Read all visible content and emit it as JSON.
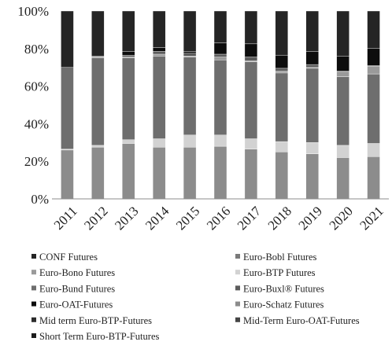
{
  "chart_data": {
    "type": "bar",
    "stacked": true,
    "categories": [
      "2011",
      "2012",
      "2013",
      "2014",
      "2015",
      "2016",
      "2017",
      "2018",
      "2019",
      "2020",
      "2021"
    ],
    "yticks": [
      "0%",
      "20%",
      "40%",
      "60%",
      "80%",
      "100%"
    ],
    "ylim": [
      0,
      100
    ],
    "grid": false,
    "legend_position": "bottom",
    "series": [
      {
        "name": "Euro-Schatz Futures",
        "color": "#8c8c8c",
        "values": [
          26.0,
          27.5,
          29.5,
          27.5,
          27.5,
          28.0,
          26.5,
          25.0,
          24.0,
          22.0,
          22.5
        ]
      },
      {
        "name": "Euro-BTP Futures",
        "color": "#d2d2d2",
        "values": [
          0.5,
          1.0,
          2.0,
          4.5,
          6.5,
          6.0,
          5.5,
          5.5,
          6.0,
          6.5,
          7.0
        ]
      },
      {
        "name": "Euro-Bund Futures",
        "color": "#6e6e6e",
        "values": [
          43.5,
          46.5,
          43.5,
          44.0,
          41.5,
          40.0,
          41.0,
          36.5,
          39.5,
          36.5,
          37.0
        ]
      },
      {
        "name": "Euro-Bono Futures",
        "color": "#9a9a9a",
        "values": [
          0.0,
          0.5,
          0.5,
          1.0,
          0.5,
          1.5,
          0.5,
          1.0,
          0.5,
          2.5,
          4.0
        ]
      },
      {
        "name": "Euro-Buxl® Futures",
        "color": "#5c5c5c",
        "values": [
          0.0,
          0.5,
          1.0,
          1.5,
          1.5,
          1.5,
          2.0,
          1.5,
          1.5,
          0.5,
          0.5
        ]
      },
      {
        "name": "Euro-OAT-Futures",
        "color": "#0d0d0d",
        "values": [
          0.0,
          0.0,
          2.0,
          2.0,
          1.0,
          6.0,
          7.0,
          7.0,
          7.0,
          8.0,
          9.0
        ]
      },
      {
        "name": "Mid term Euro-BTP-Futures",
        "color": "#2c2c2c",
        "values": [
          0.0,
          0.0,
          0.0,
          0.0,
          0.0,
          0.0,
          0.0,
          0.0,
          0.0,
          0.0,
          0.0
        ]
      },
      {
        "name": "Mid-Term Euro-OAT-Futures",
        "color": "#454545",
        "values": [
          0.0,
          0.0,
          0.0,
          0.0,
          0.0,
          0.0,
          0.0,
          0.0,
          0.0,
          0.0,
          0.0
        ]
      },
      {
        "name": "Short Term Euro-BTP-Futures",
        "color": "#1c1c1c",
        "values": [
          0.0,
          0.0,
          0.0,
          0.0,
          0.0,
          0.0,
          0.0,
          0.0,
          0.0,
          0.0,
          0.0
        ]
      },
      {
        "name": "Euro-Bobl Futures",
        "color": "#7a7a7a",
        "values": [
          0.0,
          0.0,
          0.0,
          0.0,
          0.0,
          0.0,
          0.0,
          0.0,
          0.0,
          0.0,
          0.0
        ]
      },
      {
        "name": "CONF Futures",
        "color": "#252525",
        "values": [
          30.0,
          24.0,
          21.5,
          19.5,
          21.5,
          17.0,
          17.5,
          23.5,
          21.5,
          24.0,
          20.0
        ]
      }
    ],
    "legend": [
      {
        "label": "CONF Futures",
        "color": "#252525"
      },
      {
        "label": "Euro-Bobl Futures",
        "color": "#7a7a7a"
      },
      {
        "label": "Euro-Bono Futures",
        "color": "#9a9a9a"
      },
      {
        "label": "Euro-BTP Futures",
        "color": "#d2d2d2"
      },
      {
        "label": "Euro-Bund Futures",
        "color": "#6e6e6e"
      },
      {
        "label": "Euro-Buxl® Futures",
        "color": "#5c5c5c"
      },
      {
        "label": "Euro-OAT-Futures",
        "color": "#0d0d0d"
      },
      {
        "label": "Euro-Schatz Futures",
        "color": "#8c8c8c"
      },
      {
        "label": "Mid term Euro-BTP-Futures",
        "color": "#2c2c2c"
      },
      {
        "label": "Mid-Term Euro-OAT-Futures",
        "color": "#454545"
      },
      {
        "label": "Short Term Euro-BTP-Futures",
        "color": "#1c1c1c"
      }
    ]
  }
}
